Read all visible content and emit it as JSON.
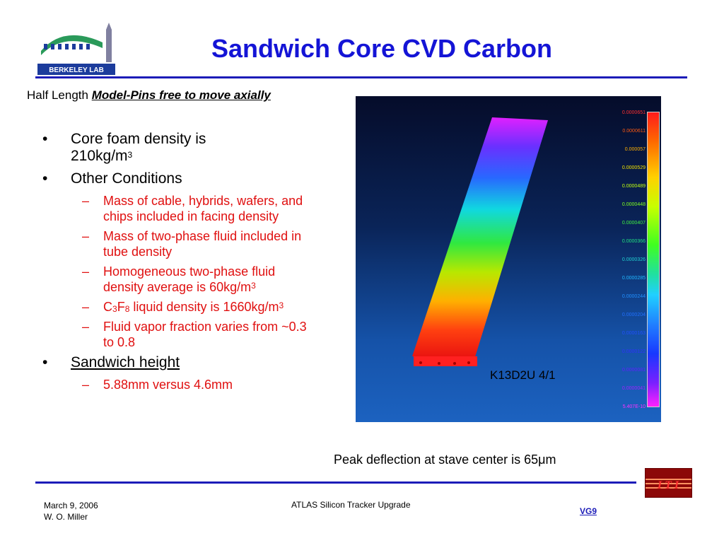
{
  "title": "Sandwich Core CVD Carbon",
  "logo": {
    "text": "BERKELEY LAB"
  },
  "subtitle": {
    "prefix": "Half Length",
    "emphasis": "Model-Pins free to move axially"
  },
  "bullets": {
    "b1_line1": "Core foam density is",
    "b1_line2": "210kg/m",
    "b1_sup": "3",
    "b2": "Other Conditions",
    "sub1": "Mass of cable, hybrids, wafers, and chips included in facing density",
    "sub2": "Mass of two-phase fluid included in tube density",
    "sub3": "Homogeneous two-phase fluid density average is 60kg/m",
    "sub3_sup": "3",
    "sub4_a": "C",
    "sub4_sub1": "3",
    "sub4_b": "F",
    "sub4_sub2": "8",
    "sub4_c": " liquid density is 1660kg/m",
    "sub4_sup": "3",
    "sub5": "Fluid vapor fraction varies from ~0.3 to 0.8",
    "b3": "Sandwich height",
    "sub6": "5.88mm versus 4.6mm"
  },
  "fea": {
    "scale_values": [
      "0.0000651",
      "0.0000611",
      "0.000057",
      "0.0000529",
      "0.0000489",
      "0.0000448",
      "0.0000407",
      "0.0000366",
      "0.0000326",
      "0.0000285",
      "0.0000244",
      "0.0000204",
      "0.0000163",
      "0.0000122",
      "0.0000081",
      "0.0000041",
      "5.407E-10"
    ],
    "scale_colors": [
      "#ff3030",
      "#ff5a10",
      "#ffb000",
      "#f0e000",
      "#c0ff10",
      "#80ff20",
      "#40f040",
      "#20e080",
      "#20d0d0",
      "#20b8ff",
      "#2090ff",
      "#2070ff",
      "#2050ff",
      "#3030ff",
      "#6020ff",
      "#a020ff",
      "#ff30ff"
    ],
    "model_id": "K13D2U 4/1"
  },
  "caption": "Peak deflection at stave center is 65μm",
  "footer": {
    "date": "March 9, 2006",
    "author": "W. O. Miller",
    "center": "ATLAS Silicon Tracker Upgrade",
    "page": "VG9"
  }
}
